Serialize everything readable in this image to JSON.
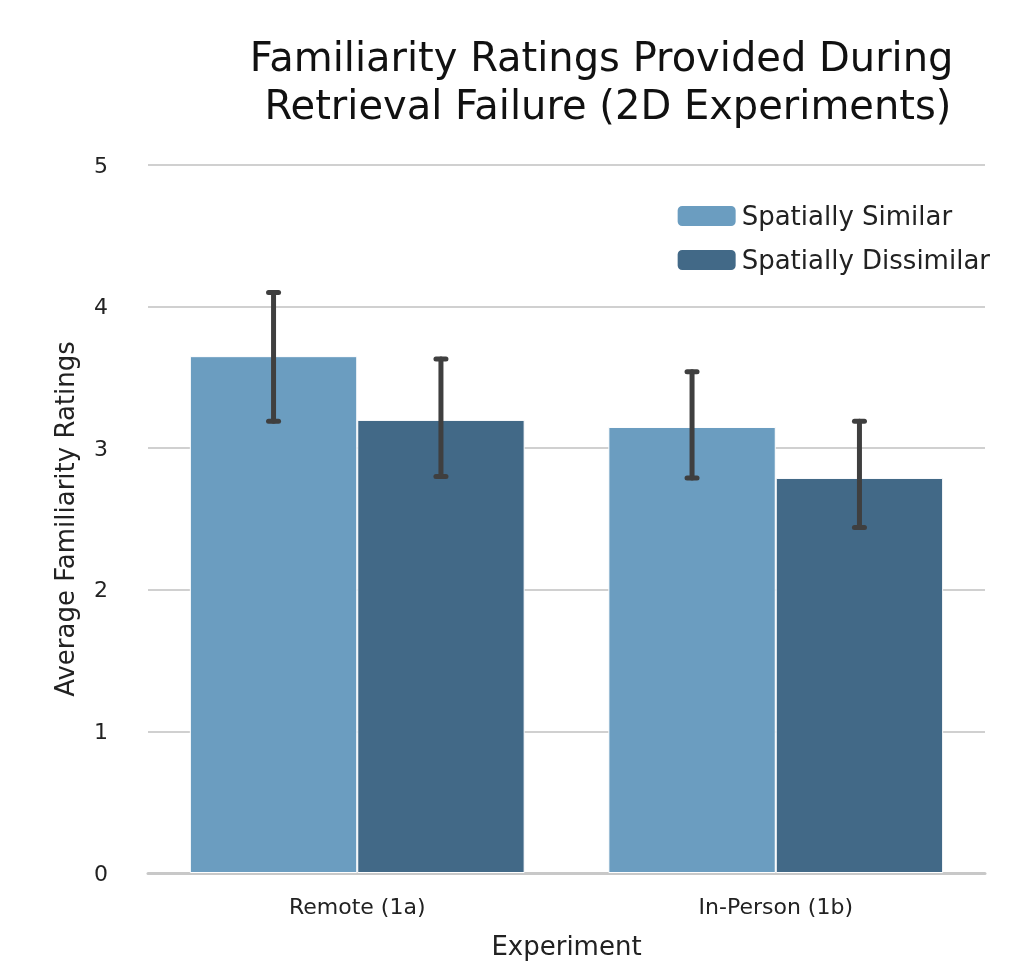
{
  "chart_data": {
    "type": "bar",
    "title": "Familiarity Ratings Provided During Retrieval Failure (2D Experiments)",
    "xlabel": "Experiment",
    "ylabel": "Average Familiarity Ratings",
    "categories": [
      "Remote (1a)",
      "In-Person (1b)"
    ],
    "series": [
      {
        "name": "Spatially Similar",
        "color": "#6b9dc0",
        "values": [
          3.65,
          3.15
        ],
        "errors": [
          [
            3.19,
            4.1
          ],
          [
            2.79,
            3.54
          ]
        ]
      },
      {
        "name": "Spatially Dissimilar",
        "color": "#426987",
        "values": [
          3.2,
          2.79
        ],
        "errors": [
          [
            2.8,
            3.63
          ],
          [
            2.44,
            3.19
          ]
        ]
      }
    ],
    "ylim": [
      0,
      5
    ],
    "yticks": [
      0,
      1,
      2,
      3,
      4,
      5
    ],
    "grid": "y",
    "legend": "top right"
  }
}
